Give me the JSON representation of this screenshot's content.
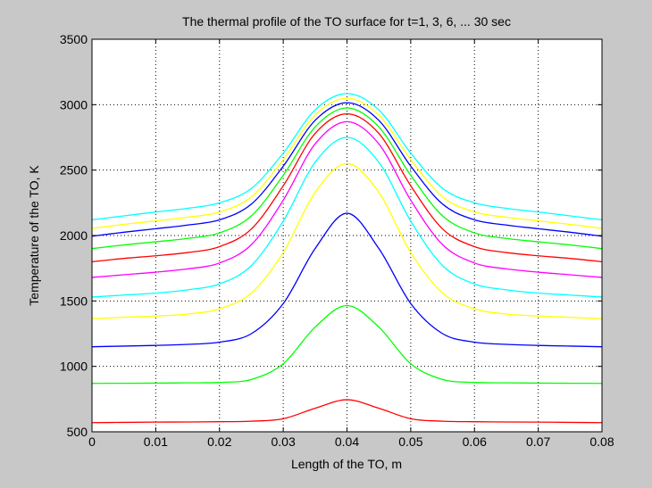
{
  "chart_data": {
    "type": "line",
    "title": "The thermal profile of the TO surface for t=1, 3, 6, ... 30 sec",
    "xlabel": "Length of the TO, m",
    "ylabel": "Temperature of the TO, K",
    "xlim": [
      0,
      0.08
    ],
    "ylim": [
      500,
      3500
    ],
    "xticks": [
      "0",
      "0.01",
      "0.02",
      "0.03",
      "0.04",
      "0.05",
      "0.06",
      "0.07",
      "0.08"
    ],
    "yticks": [
      "500",
      "1000",
      "1500",
      "2000",
      "2500",
      "3000",
      "3500"
    ],
    "grid": true,
    "x": [
      0,
      0.005,
      0.01,
      0.015,
      0.02,
      0.025,
      0.03,
      0.035,
      0.04,
      0.045,
      0.05,
      0.055,
      0.06,
      0.065,
      0.07,
      0.075,
      0.08
    ],
    "series": [
      {
        "color": "#ff0000",
        "values": [
          570,
          572,
          574,
          575,
          577,
          581,
          600,
          680,
          745,
          680,
          600,
          581,
          577,
          575,
          574,
          572,
          570
        ]
      },
      {
        "color": "#00ff00",
        "values": [
          870,
          871,
          872,
          874,
          877,
          900,
          1020,
          1300,
          1465,
          1300,
          1020,
          900,
          877,
          874,
          872,
          871,
          870
        ]
      },
      {
        "color": "#0000ff",
        "values": [
          1150,
          1155,
          1160,
          1168,
          1185,
          1250,
          1480,
          1900,
          2170,
          1900,
          1480,
          1250,
          1185,
          1168,
          1160,
          1155,
          1150
        ]
      },
      {
        "color": "#ffff00",
        "values": [
          1365,
          1375,
          1385,
          1400,
          1440,
          1560,
          1870,
          2330,
          2550,
          2330,
          1870,
          1560,
          1440,
          1400,
          1385,
          1375,
          1365
        ]
      },
      {
        "color": "#00ffff",
        "values": [
          1530,
          1545,
          1560,
          1585,
          1630,
          1770,
          2110,
          2560,
          2750,
          2560,
          2110,
          1770,
          1630,
          1585,
          1560,
          1545,
          1530
        ]
      },
      {
        "color": "#ff00ff",
        "values": [
          1680,
          1700,
          1720,
          1745,
          1790,
          1930,
          2270,
          2700,
          2870,
          2700,
          2270,
          1930,
          1790,
          1745,
          1720,
          1700,
          1680
        ]
      },
      {
        "color": "#ff0000",
        "values": [
          1800,
          1825,
          1845,
          1870,
          1915,
          2050,
          2380,
          2780,
          2930,
          2780,
          2380,
          2050,
          1915,
          1870,
          1845,
          1825,
          1800
        ]
      },
      {
        "color": "#00ff00",
        "values": [
          1900,
          1928,
          1952,
          1978,
          2020,
          2150,
          2460,
          2830,
          2975,
          2830,
          2460,
          2150,
          2020,
          1978,
          1952,
          1928,
          1900
        ]
      },
      {
        "color": "#0000ff",
        "values": [
          1995,
          2025,
          2052,
          2080,
          2120,
          2240,
          2530,
          2880,
          3015,
          2880,
          2530,
          2240,
          2120,
          2080,
          2052,
          2025,
          1995
        ]
      },
      {
        "color": "#ffff00",
        "values": [
          2055,
          2085,
          2112,
          2140,
          2180,
          2295,
          2580,
          2920,
          3050,
          2920,
          2580,
          2295,
          2180,
          2140,
          2112,
          2085,
          2055
        ]
      },
      {
        "color": "#00ffff",
        "values": [
          2120,
          2150,
          2180,
          2208,
          2250,
          2360,
          2630,
          2960,
          3085,
          2960,
          2630,
          2360,
          2250,
          2208,
          2180,
          2150,
          2120
        ]
      }
    ]
  }
}
